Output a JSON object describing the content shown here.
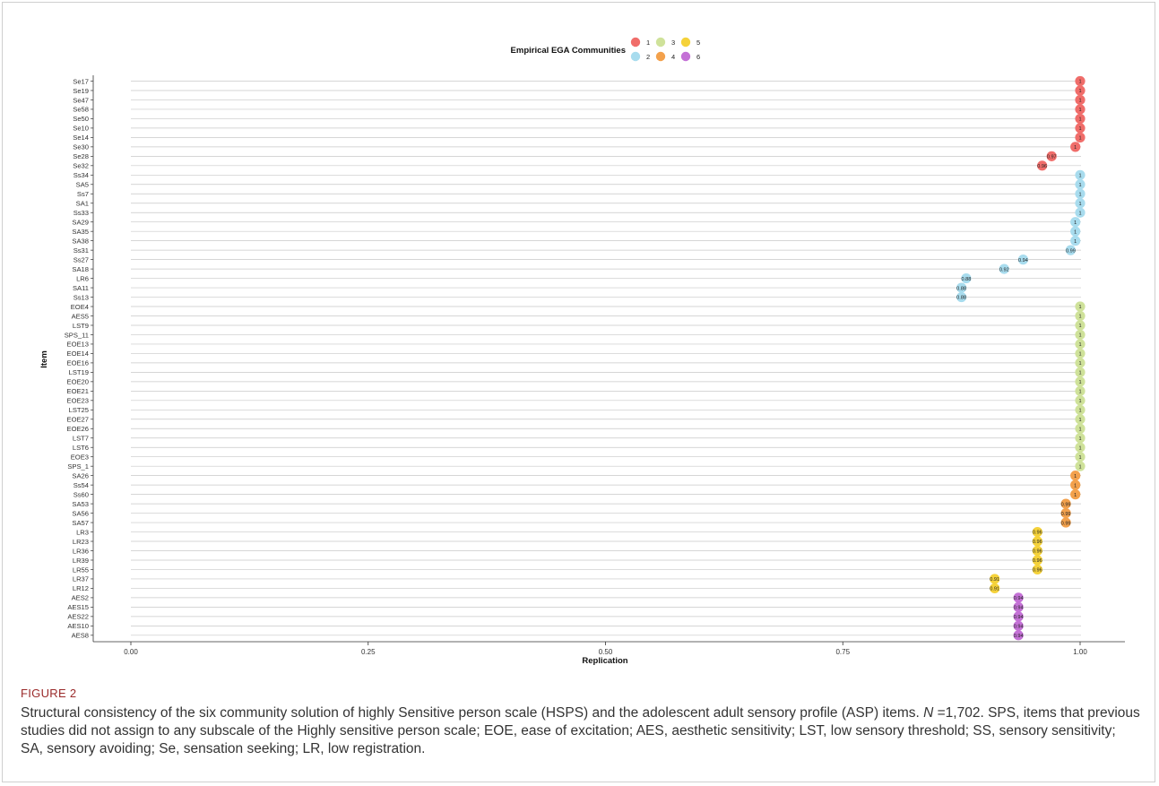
{
  "chart_data": {
    "type": "scatter",
    "xlabel": "Replication",
    "ylabel": "Item",
    "xlim": [
      0,
      1
    ],
    "x_ticks": [
      "0.00",
      "0.25",
      "0.50",
      "0.75",
      "1.00"
    ],
    "x_tick_values": [
      0,
      0.25,
      0.5,
      0.75,
      1.0
    ],
    "grid": "horizontal lines per item",
    "legend": {
      "title": "Empirical EGA Communities",
      "placement": "top",
      "entries": [
        {
          "label": "1",
          "color": "#F06D6A"
        },
        {
          "label": "2",
          "color": "#A8DCEE"
        },
        {
          "label": "3",
          "color": "#CFE29A"
        },
        {
          "label": "4",
          "color": "#F3A14C"
        },
        {
          "label": "5",
          "color": "#F5D23A"
        },
        {
          "label": "6",
          "color": "#C471D6"
        }
      ]
    },
    "points": [
      {
        "item": "Se17",
        "value": 1,
        "community": "1",
        "label": "1"
      },
      {
        "item": "Se19",
        "value": 1,
        "community": "1",
        "label": "1"
      },
      {
        "item": "Se47",
        "value": 1,
        "community": "1",
        "label": "1"
      },
      {
        "item": "Se58",
        "value": 1,
        "community": "1",
        "label": "1"
      },
      {
        "item": "Se50",
        "value": 1,
        "community": "1",
        "label": "1"
      },
      {
        "item": "Se10",
        "value": 1,
        "community": "1",
        "label": "1"
      },
      {
        "item": "Se14",
        "value": 1,
        "community": "1",
        "label": "1"
      },
      {
        "item": "Se30",
        "value": 0.995,
        "community": "1",
        "label": "1"
      },
      {
        "item": "Se28",
        "value": 0.97,
        "community": "1",
        "label": "0.97"
      },
      {
        "item": "Se32",
        "value": 0.96,
        "community": "1",
        "label": "0.96"
      },
      {
        "item": "Ss34",
        "value": 1,
        "community": "2",
        "label": "1"
      },
      {
        "item": "SA5",
        "value": 1,
        "community": "2",
        "label": "1"
      },
      {
        "item": "Ss7",
        "value": 1,
        "community": "2",
        "label": "1"
      },
      {
        "item": "SA1",
        "value": 1,
        "community": "2",
        "label": "1"
      },
      {
        "item": "Ss33",
        "value": 1,
        "community": "2",
        "label": "1"
      },
      {
        "item": "SA29",
        "value": 0.995,
        "community": "2",
        "label": "1"
      },
      {
        "item": "SA35",
        "value": 0.995,
        "community": "2",
        "label": "1"
      },
      {
        "item": "SA38",
        "value": 0.995,
        "community": "2",
        "label": "1"
      },
      {
        "item": "Ss31",
        "value": 0.99,
        "community": "2",
        "label": "0.99"
      },
      {
        "item": "Ss27",
        "value": 0.94,
        "community": "2",
        "label": "0.94"
      },
      {
        "item": "SA18",
        "value": 0.92,
        "community": "2",
        "label": "0.92"
      },
      {
        "item": "LR6",
        "value": 0.88,
        "community": "2",
        "label": "0.88"
      },
      {
        "item": "SA11",
        "value": 0.875,
        "community": "2",
        "label": "0.88"
      },
      {
        "item": "Ss13",
        "value": 0.875,
        "community": "2",
        "label": "0.88"
      },
      {
        "item": "EOE4",
        "value": 1,
        "community": "3",
        "label": "1"
      },
      {
        "item": "AES5",
        "value": 1,
        "community": "3",
        "label": "1"
      },
      {
        "item": "LST9",
        "value": 1,
        "community": "3",
        "label": "1"
      },
      {
        "item": "SPS_11",
        "value": 1,
        "community": "3",
        "label": "1"
      },
      {
        "item": "EOE13",
        "value": 1,
        "community": "3",
        "label": "1"
      },
      {
        "item": "EOE14",
        "value": 1,
        "community": "3",
        "label": "1"
      },
      {
        "item": "EOE16",
        "value": 1,
        "community": "3",
        "label": "1"
      },
      {
        "item": "LST19",
        "value": 1,
        "community": "3",
        "label": "1"
      },
      {
        "item": "EOE20",
        "value": 1,
        "community": "3",
        "label": "1"
      },
      {
        "item": "EOE21",
        "value": 1,
        "community": "3",
        "label": "1"
      },
      {
        "item": "EOE23",
        "value": 1,
        "community": "3",
        "label": "1"
      },
      {
        "item": "LST25",
        "value": 1,
        "community": "3",
        "label": "1"
      },
      {
        "item": "EOE27",
        "value": 1,
        "community": "3",
        "label": "1"
      },
      {
        "item": "EOE26",
        "value": 1,
        "community": "3",
        "label": "1"
      },
      {
        "item": "LST7",
        "value": 1,
        "community": "3",
        "label": "1"
      },
      {
        "item": "LST6",
        "value": 1,
        "community": "3",
        "label": "1"
      },
      {
        "item": "EOE3",
        "value": 1,
        "community": "3",
        "label": "1"
      },
      {
        "item": "SPS_1",
        "value": 1,
        "community": "3",
        "label": "1"
      },
      {
        "item": "SA26",
        "value": 0.995,
        "community": "4",
        "label": "1"
      },
      {
        "item": "Ss54",
        "value": 0.995,
        "community": "4",
        "label": "1"
      },
      {
        "item": "Ss60",
        "value": 0.995,
        "community": "4",
        "label": "1"
      },
      {
        "item": "SA53",
        "value": 0.985,
        "community": "4",
        "label": "0.99"
      },
      {
        "item": "SA56",
        "value": 0.985,
        "community": "4",
        "label": "0.99"
      },
      {
        "item": "SA57",
        "value": 0.985,
        "community": "4",
        "label": "0.99"
      },
      {
        "item": "LR3",
        "value": 0.955,
        "community": "5",
        "label": "0.96"
      },
      {
        "item": "LR23",
        "value": 0.955,
        "community": "5",
        "label": "0.96"
      },
      {
        "item": "LR36",
        "value": 0.955,
        "community": "5",
        "label": "0.96"
      },
      {
        "item": "LR39",
        "value": 0.955,
        "community": "5",
        "label": "0.96"
      },
      {
        "item": "LR55",
        "value": 0.955,
        "community": "5",
        "label": "0.96"
      },
      {
        "item": "LR37",
        "value": 0.91,
        "community": "5",
        "label": "0.91"
      },
      {
        "item": "LR12",
        "value": 0.91,
        "community": "5",
        "label": "0.91"
      },
      {
        "item": "AES2",
        "value": 0.935,
        "community": "6",
        "label": "0.94"
      },
      {
        "item": "AES15",
        "value": 0.935,
        "community": "6",
        "label": "0.94"
      },
      {
        "item": "AES22",
        "value": 0.935,
        "community": "6",
        "label": "0.94"
      },
      {
        "item": "AES10",
        "value": 0.935,
        "community": "6",
        "label": "0.94"
      },
      {
        "item": "AES8",
        "value": 0.935,
        "community": "6",
        "label": "0.94"
      }
    ]
  },
  "figure": {
    "label": "FIGURE 2",
    "caption_pre": "Structural consistency of the six community solution of highly Sensitive person scale (HSPS) and the adolescent adult sensory profile (ASP) items. ",
    "caption_n": "N",
    "caption_post": " =1,702. SPS, items that previous studies did not assign to any subscale of the Highly sensitive person scale; EOE, ease of excitation; AES, aesthetic sensitivity; LST, low sensory threshold; SS, sensory sensitivity; SA, sensory avoiding; Se, sensation seeking; LR, low registration."
  }
}
